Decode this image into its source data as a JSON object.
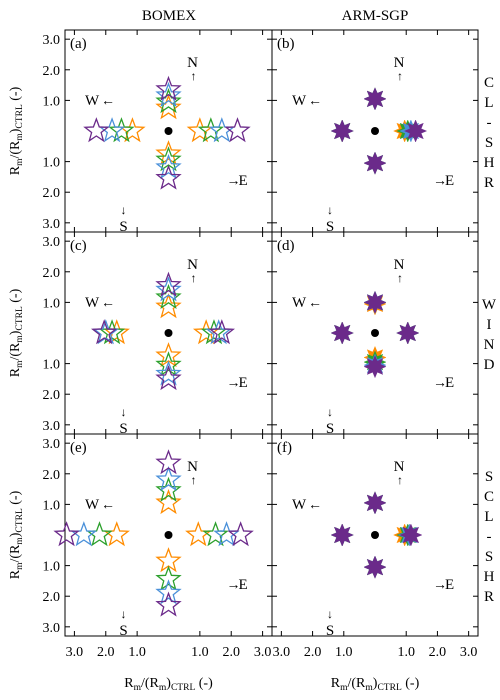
{
  "chart_data": {
    "type": "scatter",
    "column_titles": [
      "BOMEX",
      "ARM-SGP"
    ],
    "row_labels": [
      [
        "C",
        "L",
        "-",
        "S",
        "H",
        "R"
      ],
      [
        "W",
        "I",
        "N",
        "D"
      ],
      [
        "S",
        "C",
        "L",
        "-",
        "S",
        "H",
        "R"
      ]
    ],
    "ylabel_main": "R",
    "ylabel_sub1": "m",
    "ylabel_mid": "/(R",
    "ylabel_sub2": "m",
    "ylabel_end": ")",
    "ylabel_sub3": "CTRL",
    "ylabel_unit": " (-)",
    "xlabel_main": "R",
    "xlabel_sub1": "m",
    "xlabel_mid": "/(R",
    "xlabel_sub2": "m",
    "xlabel_end": ")",
    "xlabel_sub3": "CTRL",
    "xlabel_unit": " (-)",
    "axis_range": [
      -3.3,
      3.3
    ],
    "ticks": [
      3.0,
      2.0,
      1.0
    ],
    "tick_labels": [
      "3.0",
      "2.0",
      "1.0"
    ],
    "directions": {
      "N": "N",
      "S": "S",
      "E": "E",
      "W": "W"
    },
    "arrows": {
      "N": "↑",
      "S": "↓",
      "E": "→",
      "W": "←"
    },
    "marker_colors": [
      "#ff8c00",
      "#2ca02c",
      "#4a90d9",
      "#6b2a8a"
    ],
    "panels": [
      {
        "label": "(a)",
        "style": "outline",
        "N": [
          0.75,
          0.95,
          1.15,
          1.35
        ],
        "S": [
          0.75,
          0.95,
          1.2,
          1.55
        ],
        "E": [
          1.0,
          1.35,
          1.7,
          2.2
        ],
        "W": [
          1.15,
          1.5,
          1.8,
          2.3
        ]
      },
      {
        "label": "(b)",
        "style": "filled",
        "N": [
          1.05,
          1.05,
          1.05,
          1.05
        ],
        "S": [
          1.05,
          1.05,
          1.05,
          1.05
        ],
        "E": [
          0.95,
          1.05,
          1.15,
          1.3
        ],
        "W": [
          1.05,
          1.05,
          1.05,
          1.05
        ]
      },
      {
        "label": "(c)",
        "style": "outline",
        "N": [
          0.85,
          1.15,
          1.4,
          1.55
        ],
        "S": [
          0.75,
          1.05,
          1.35,
          1.5
        ],
        "E": [
          1.2,
          1.45,
          1.6,
          1.7
        ],
        "W": [
          1.65,
          1.8,
          2.0,
          2.05
        ]
      },
      {
        "label": "(d)",
        "style": "filled",
        "N": [
          0.95,
          1.0,
          1.0,
          1.0
        ],
        "S": [
          0.8,
          0.95,
          1.05,
          1.1
        ],
        "E": [
          1.05,
          1.05,
          1.05,
          1.05
        ],
        "W": [
          1.05,
          1.05,
          1.05,
          1.05
        ]
      },
      {
        "label": "(e)",
        "style": "outline",
        "N": [
          1.05,
          1.45,
          1.8,
          2.35
        ],
        "S": [
          0.85,
          1.45,
          1.9,
          2.3
        ],
        "E": [
          0.95,
          1.5,
          1.85,
          2.3
        ],
        "W": [
          1.65,
          2.2,
          2.7,
          3.25
        ]
      },
      {
        "label": "(f)",
        "style": "filled",
        "N": [
          1.05,
          1.05,
          1.05,
          1.05
        ],
        "S": [
          1.05,
          1.05,
          1.05,
          1.05
        ],
        "E": [
          0.95,
          1.05,
          1.1,
          1.15
        ],
        "W": [
          1.05,
          1.05,
          1.05,
          1.05
        ]
      }
    ]
  }
}
